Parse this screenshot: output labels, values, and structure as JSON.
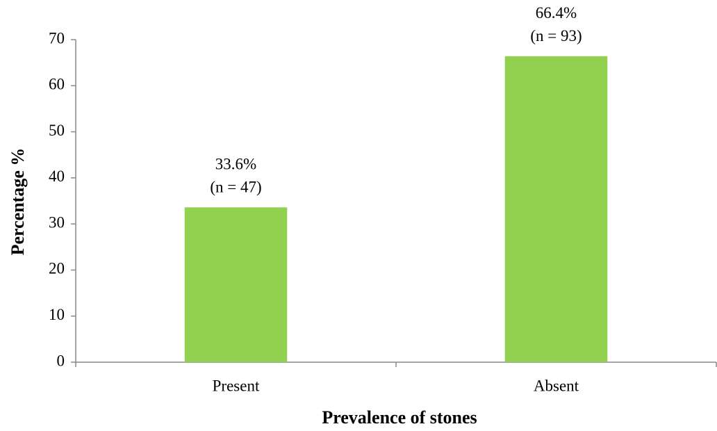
{
  "chart_data": {
    "type": "bar",
    "x_label": "Prevalence of stones",
    "y_label": "Percentage %",
    "categories": [
      "Present",
      "Absent"
    ],
    "values": [
      33.6,
      66.4
    ],
    "value_labels": [
      "33.6%",
      "66.4%"
    ],
    "count_labels": [
      "(n = 47)",
      "(n = 93)"
    ],
    "color": "#92d050",
    "ylim": [
      0,
      70
    ],
    "yticks": [
      0,
      10,
      20,
      30,
      40,
      50,
      60,
      70
    ]
  }
}
